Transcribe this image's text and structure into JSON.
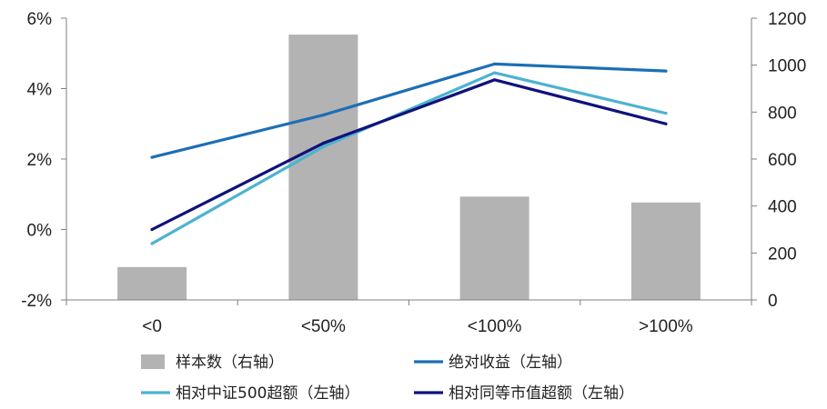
{
  "chart_data": {
    "type": "bar",
    "categories": [
      "<0",
      "<50%",
      "<100%",
      ">100%"
    ],
    "left_axis": {
      "ticks": [
        "-2%",
        "0%",
        "2%",
        "4%",
        "6%"
      ],
      "tick_values": [
        -2,
        0,
        2,
        4,
        6
      ],
      "ylim": [
        -2,
        6
      ]
    },
    "right_axis": {
      "ticks": [
        "0",
        "200",
        "400",
        "600",
        "800",
        "1000",
        "1200"
      ],
      "tick_values": [
        0,
        200,
        400,
        600,
        800,
        1000,
        1200
      ],
      "ylim": [
        0,
        1200
      ]
    },
    "bars": {
      "name": "样本数（右轴）",
      "axis": "right",
      "color": "#b3b3b3",
      "values": [
        140,
        1130,
        440,
        415
      ]
    },
    "series": [
      {
        "name": "绝对收益（左轴）",
        "axis": "left",
        "color": "#1c6fb5",
        "values": [
          2.05,
          3.25,
          4.7,
          4.5
        ]
      },
      {
        "name": "相对中证500超额（左轴）",
        "axis": "left",
        "color": "#4cb3cf",
        "values": [
          -0.4,
          2.35,
          4.45,
          3.3
        ]
      },
      {
        "name": "相对同等市值超额（左轴）",
        "axis": "left",
        "color": "#10127a",
        "values": [
          0.0,
          2.45,
          4.25,
          3.0
        ]
      }
    ],
    "grid": false,
    "legend_position": "bottom"
  }
}
